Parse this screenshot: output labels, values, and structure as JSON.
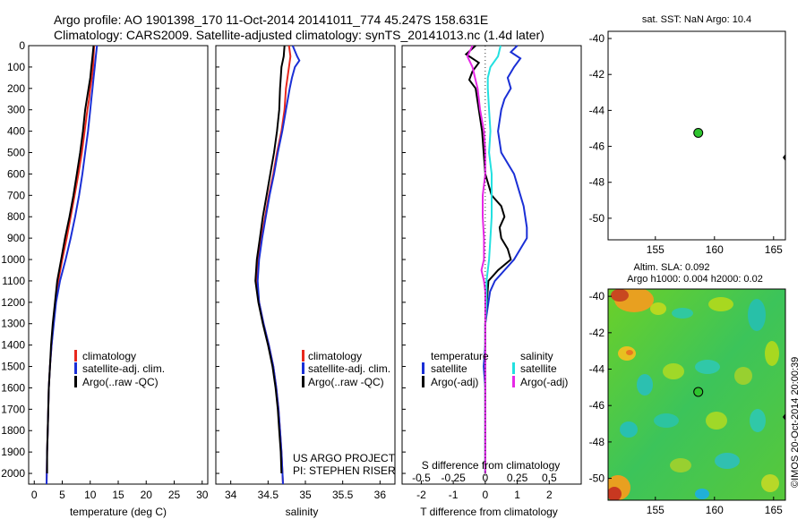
{
  "title": {
    "line1": "Argo profile: AO 1901398_170 11-Oct-2014 20141011_774 45.247S 158.631E",
    "line2": "Climatology: CARS2009. Satellite-adjusted climatology: synTS_20141013.nc (1.4d later)"
  },
  "colors": {
    "climatology": "#e8281e",
    "satellite": "#1a2fd6",
    "argo": "#000000",
    "t_sat": "#1a2fd6",
    "t_argo": "#000000",
    "s_sat": "#22e0e0",
    "s_argo": "#e628e6",
    "dot": "#2ec42e"
  },
  "depth_axis": {
    "min": 0,
    "max": 2050,
    "ticks": [
      0,
      100,
      200,
      300,
      400,
      500,
      600,
      700,
      800,
      900,
      1000,
      1100,
      1200,
      1300,
      1400,
      1500,
      1600,
      1700,
      1800,
      1900,
      2000
    ]
  },
  "chart_data": [
    {
      "type": "line",
      "panel": "temperature",
      "xlabel": "temperature (deg C)",
      "xlim": [
        -1,
        31
      ],
      "xticks": [
        0,
        5,
        10,
        15,
        20,
        25,
        30
      ],
      "ylim": [
        2050,
        0
      ],
      "legend": [
        "climatology",
        "satellite-adj. clim.",
        "Argo(..raw -QC)"
      ],
      "series": [
        {
          "name": "climatology",
          "color_key": "climatology",
          "depth": [
            0,
            50,
            100,
            150,
            200,
            250,
            300,
            400,
            500,
            600,
            700,
            800,
            900,
            1000,
            1100,
            1200,
            1300,
            1400,
            1500,
            1600,
            1700,
            1800,
            1900,
            2050
          ],
          "values": [
            10.7,
            10.6,
            10.5,
            10.3,
            10.0,
            9.8,
            9.5,
            9.0,
            8.5,
            7.9,
            7.2,
            6.5,
            5.8,
            5.0,
            4.3,
            3.8,
            3.4,
            3.1,
            2.8,
            2.6,
            2.5,
            2.4,
            2.3,
            2.2
          ]
        },
        {
          "name": "satellite-adj. clim.",
          "color_key": "satellite",
          "depth": [
            0,
            50,
            100,
            150,
            200,
            250,
            300,
            400,
            500,
            600,
            700,
            800,
            900,
            1000,
            1100,
            1200,
            1300,
            1400,
            1500,
            1600,
            1700,
            1800,
            1900,
            2050
          ],
          "values": [
            11.2,
            11.0,
            10.8,
            10.6,
            10.4,
            10.2,
            10.0,
            9.6,
            9.1,
            8.6,
            8.0,
            7.3,
            6.5,
            5.6,
            4.6,
            3.9,
            3.5,
            3.1,
            2.8,
            2.6,
            2.5,
            2.4,
            2.3,
            2.2
          ]
        },
        {
          "name": "Argo(..raw -QC)",
          "color_key": "argo",
          "depth": [
            0,
            50,
            100,
            150,
            200,
            250,
            300,
            400,
            500,
            600,
            700,
            800,
            900,
            1000,
            1100,
            1200,
            1300,
            1400,
            1500,
            1600,
            1700,
            1800,
            1900,
            2000
          ],
          "values": [
            10.6,
            10.4,
            10.2,
            10.0,
            9.7,
            9.4,
            9.1,
            8.7,
            8.2,
            7.6,
            7.0,
            6.3,
            5.5,
            4.8,
            4.1,
            3.7,
            3.3,
            3.0,
            2.8,
            2.6,
            2.5,
            2.4,
            2.3,
            2.3
          ]
        }
      ]
    },
    {
      "type": "line",
      "panel": "salinity",
      "xlabel": "salinity",
      "xlim": [
        33.8,
        36.2
      ],
      "xticks": [
        34,
        34.5,
        35,
        35.5,
        36
      ],
      "ylim": [
        2050,
        0
      ],
      "legend": [
        "climatology",
        "satellite-adj. clim.",
        "Argo(..raw -QC)"
      ],
      "series": [
        {
          "name": "climatology",
          "color_key": "climatology",
          "depth": [
            0,
            50,
            100,
            150,
            200,
            300,
            400,
            500,
            600,
            700,
            800,
            900,
            1000,
            1100,
            1200,
            1300,
            1400,
            1500,
            1600,
            1700,
            1800,
            1900,
            2050
          ],
          "values": [
            34.78,
            34.8,
            34.78,
            34.76,
            34.74,
            34.72,
            34.68,
            34.62,
            34.57,
            34.51,
            34.46,
            34.41,
            34.37,
            34.35,
            34.38,
            34.44,
            34.51,
            34.57,
            34.61,
            34.64,
            34.66,
            34.68,
            34.7
          ]
        },
        {
          "name": "satellite-adj. clim.",
          "color_key": "satellite",
          "depth": [
            0,
            50,
            70,
            100,
            150,
            200,
            300,
            400,
            500,
            600,
            700,
            800,
            900,
            1000,
            1100,
            1200,
            1300,
            1400,
            1500,
            1600,
            1700,
            1800,
            1900,
            2050
          ],
          "values": [
            34.83,
            34.89,
            34.92,
            34.86,
            34.82,
            34.79,
            34.74,
            34.69,
            34.63,
            34.58,
            34.52,
            34.47,
            34.42,
            34.38,
            34.36,
            34.38,
            34.44,
            34.51,
            34.57,
            34.61,
            34.64,
            34.66,
            34.68,
            34.7
          ]
        },
        {
          "name": "Argo(..raw -QC)",
          "color_key": "argo",
          "depth": [
            0,
            50,
            100,
            150,
            200,
            300,
            400,
            500,
            600,
            700,
            800,
            900,
            1000,
            1100,
            1200,
            1300,
            1400,
            1500,
            1600,
            1700,
            1800,
            1900,
            2000
          ],
          "values": [
            34.72,
            34.71,
            34.68,
            34.67,
            34.66,
            34.65,
            34.62,
            34.58,
            34.53,
            34.48,
            34.43,
            34.39,
            34.35,
            34.33,
            34.37,
            34.43,
            34.5,
            34.56,
            34.6,
            34.63,
            34.65,
            34.67,
            34.68
          ]
        }
      ]
    },
    {
      "type": "line",
      "panel": "difference",
      "xlabel": "T difference from climatology",
      "xlabel_top": "S difference from climatology",
      "xlim": [
        -2.6,
        3.0
      ],
      "xticks": [
        -2,
        -1,
        0,
        1,
        2
      ],
      "xticks_top_values": [
        -0.5,
        -0.25,
        0,
        0.25,
        0.5
      ],
      "xticks_top_labels": [
        "-0.5",
        "-0.25",
        "0",
        "0.25",
        "0.5"
      ],
      "ylim": [
        2050,
        0
      ],
      "legend_headers": [
        "temperature",
        "salinity"
      ],
      "legend": [
        "satellite",
        "Argo(-adj)",
        "satellite",
        "Argo(-adj)"
      ],
      "series": [
        {
          "name": "satellite",
          "group": "temperature",
          "color_key": "t_sat",
          "depth": [
            0,
            30,
            60,
            100,
            150,
            200,
            250,
            300,
            400,
            500,
            600,
            700,
            750,
            800,
            850,
            900,
            950,
            1000,
            1050,
            1100,
            1150,
            1200,
            1300,
            1400,
            1500,
            1600,
            1800,
            2000
          ],
          "values": [
            1.0,
            0.8,
            1.1,
            0.9,
            0.7,
            0.8,
            0.6,
            0.5,
            0.4,
            0.5,
            0.9,
            1.1,
            1.2,
            1.25,
            1.3,
            1.3,
            1.1,
            0.9,
            0.6,
            0.3,
            0.15,
            0.1,
            0.0,
            0.0,
            -0.05,
            0.0,
            0.0,
            0.0
          ]
        },
        {
          "name": "Argo(-adj)",
          "group": "temperature",
          "color_key": "t_argo",
          "depth": [
            0,
            40,
            80,
            120,
            160,
            200,
            300,
            400,
            500,
            600,
            700,
            750,
            800,
            850,
            900,
            950,
            1000,
            1050,
            1100,
            1200,
            1300,
            1400,
            1500,
            1600,
            1800,
            2000
          ],
          "values": [
            -0.3,
            -0.6,
            -0.2,
            -0.4,
            -0.5,
            -0.3,
            -0.2,
            -0.1,
            -0.05,
            0.0,
            0.2,
            0.5,
            0.6,
            0.45,
            0.5,
            0.7,
            0.8,
            0.4,
            0.1,
            0.05,
            0.0,
            0.0,
            0.0,
            0.0,
            0.0,
            0.0
          ]
        },
        {
          "name": "satellite",
          "group": "salinity",
          "color_key": "s_sat",
          "depth": [
            0,
            50,
            100,
            150,
            200,
            300,
            400,
            500,
            600,
            700,
            800,
            900,
            1000,
            1100,
            1200,
            1300,
            1400,
            1500,
            1600,
            1800,
            2000
          ],
          "values": [
            0.12,
            0.1,
            0.04,
            0.02,
            0.02,
            0.03,
            0.04,
            0.03,
            0.05,
            0.05,
            0.05,
            0.04,
            0.03,
            0.01,
            0.01,
            0.0,
            0.0,
            0.0,
            0.0,
            0.0,
            0.0
          ]
        },
        {
          "name": "Argo(-adj)",
          "group": "salinity",
          "color_key": "s_argo",
          "depth": [
            0,
            50,
            100,
            150,
            200,
            300,
            400,
            500,
            600,
            700,
            800,
            900,
            1000,
            1050,
            1100,
            1150,
            1200,
            1300,
            1400,
            1500,
            1600,
            1800,
            2000
          ],
          "values": [
            -0.1,
            -0.14,
            -0.1,
            -0.08,
            -0.06,
            -0.04,
            -0.01,
            0.0,
            0.0,
            -0.02,
            -0.02,
            -0.01,
            -0.01,
            -0.03,
            -0.01,
            0.0,
            0.0,
            0.0,
            0.0,
            0.0,
            0.0,
            0.0,
            0.0
          ]
        }
      ]
    },
    {
      "type": "scatter",
      "panel": "sst_map",
      "title": "sat. SST: NaN Argo: 10.4",
      "xlim": [
        151,
        166
      ],
      "ylim": [
        -51.2,
        -39.6
      ],
      "xticks": [
        155,
        160,
        165
      ],
      "yticks": [
        -40,
        -42,
        -44,
        -46,
        -48,
        -50
      ],
      "points": [
        {
          "x": 158.63,
          "y": -45.25
        }
      ]
    },
    {
      "type": "heatmap",
      "panel": "sla_map",
      "title_line1": "Altim. SLA: 0.092",
      "title_line2": "Argo h1000: 0.004 h2000: 0.02",
      "side_label": "©IMOS 20-Oct-2014 20:00:39",
      "xlim": [
        151,
        166
      ],
      "ylim": [
        -51.2,
        -39.6
      ],
      "xticks": [
        155,
        160,
        165
      ],
      "yticks": [
        -40,
        -42,
        -44,
        -46,
        -48,
        -50
      ],
      "points": [
        {
          "x": 158.63,
          "y": -45.25
        }
      ]
    }
  ],
  "annotations": {
    "project": "US ARGO PROJECT",
    "pi": "PI: STEPHEN RISER"
  }
}
